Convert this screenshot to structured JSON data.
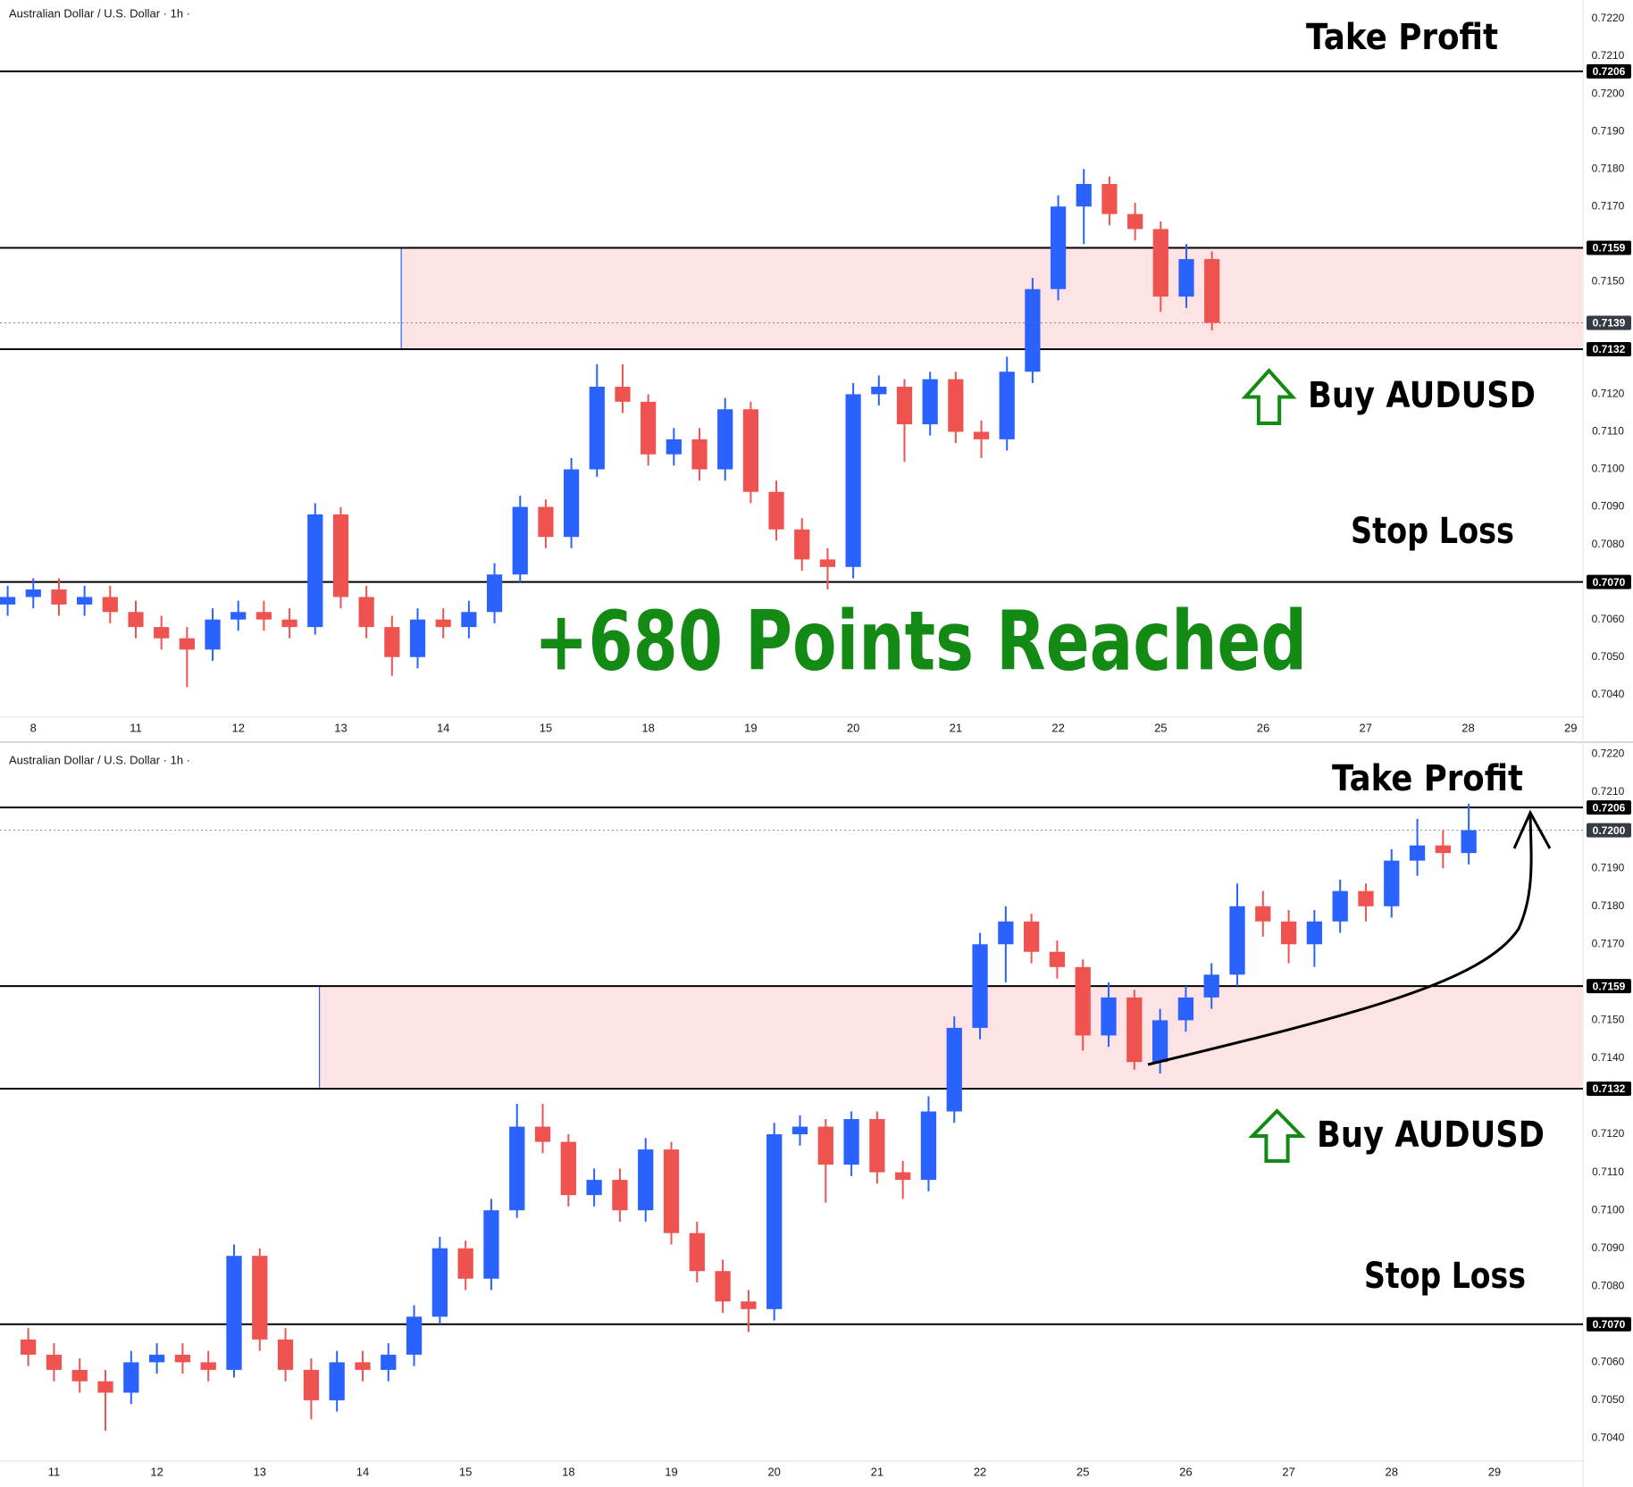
{
  "chart_data": [
    {
      "type": "candlestick",
      "title": "Australian Dollar / U.S. Dollar · 1h ·",
      "up_color": "#2962ff",
      "down_color": "#ef5350",
      "xlim": [
        -0.29,
        15.12
      ],
      "xticks": [
        {
          "value": 0,
          "label": "8"
        },
        {
          "value": 1,
          "label": "11"
        },
        {
          "value": 2,
          "label": "12"
        },
        {
          "value": 3,
          "label": "13"
        },
        {
          "value": 4,
          "label": "14"
        },
        {
          "value": 5,
          "label": "15"
        },
        {
          "value": 6,
          "label": "18"
        },
        {
          "value": 7,
          "label": "19"
        },
        {
          "value": 8,
          "label": "20"
        },
        {
          "value": 9,
          "label": "21"
        },
        {
          "value": 10,
          "label": "22"
        },
        {
          "value": 11,
          "label": "25"
        },
        {
          "value": 12,
          "label": "26"
        },
        {
          "value": 13,
          "label": "27"
        },
        {
          "value": 14,
          "label": "28"
        },
        {
          "value": 15,
          "label": "29"
        }
      ],
      "ylim": [
        0.7034,
        0.7225
      ],
      "yticks": [
        {
          "value": 0.704,
          "label": "0.7040"
        },
        {
          "value": 0.705,
          "label": "0.7050"
        },
        {
          "value": 0.706,
          "label": "0.7060"
        },
        {
          "value": 0.708,
          "label": "0.7080"
        },
        {
          "value": 0.709,
          "label": "0.7090"
        },
        {
          "value": 0.71,
          "label": "0.7100"
        },
        {
          "value": 0.711,
          "label": "0.7110"
        },
        {
          "value": 0.712,
          "label": "0.7120"
        },
        {
          "value": 0.715,
          "label": "0.7150"
        },
        {
          "value": 0.717,
          "label": "0.7170"
        },
        {
          "value": 0.718,
          "label": "0.7180"
        },
        {
          "value": 0.719,
          "label": "0.7190"
        },
        {
          "value": 0.72,
          "label": "0.7200"
        },
        {
          "value": 0.721,
          "label": "0.7210"
        },
        {
          "value": 0.722,
          "label": "0.7220"
        }
      ],
      "levels": [
        0.7206,
        0.7159,
        0.7132,
        {
          "value": 0.707,
          "label": "0.7070"
        }
      ],
      "last_price": 0.7139,
      "zone": {
        "x_start": 3.59,
        "low": 0.7132,
        "high": 0.7159,
        "color": "#fde3e3"
      },
      "take_profit": "Take Profit",
      "buy_label": "Buy AUDUSD",
      "stop_loss": "Stop Loss",
      "headline": "+680 Points Reached",
      "annotation_color": "#138a13",
      "x": [
        -0.25,
        0,
        0.25,
        0.5,
        0.75,
        1,
        1.25,
        1.5,
        1.75,
        2,
        2.25,
        2.5,
        2.75,
        3,
        3.25,
        3.5,
        3.75,
        4,
        4.25,
        4.5,
        4.75,
        5,
        5.25,
        5.5,
        5.75,
        6,
        6.25,
        6.5,
        6.75,
        7,
        7.25,
        7.5,
        7.75,
        8,
        8.25,
        8.5,
        8.75,
        9,
        9.25,
        9.5,
        9.75,
        10,
        10.25,
        10.5,
        10.75,
        11,
        11.25,
        11.5
      ],
      "open": [
        0.7064,
        0.7066,
        0.7068,
        0.7064,
        0.7066,
        0.7062,
        0.7058,
        0.7055,
        0.7052,
        0.706,
        0.7062,
        0.706,
        0.7058,
        0.7088,
        0.7066,
        0.7058,
        0.705,
        0.706,
        0.7058,
        0.7062,
        0.7072,
        0.709,
        0.7082,
        0.71,
        0.7122,
        0.7118,
        0.7104,
        0.7108,
        0.71,
        0.7116,
        0.7094,
        0.7084,
        0.7076,
        0.7074,
        0.712,
        0.7122,
        0.7112,
        0.7124,
        0.711,
        0.7108,
        0.7126,
        0.7148,
        0.717,
        0.7176,
        0.7168,
        0.7164,
        0.7146,
        0.7156
      ],
      "high": [
        0.7069,
        0.7071,
        0.7071,
        0.7069,
        0.7069,
        0.7065,
        0.7061,
        0.7058,
        0.7063,
        0.7065,
        0.7065,
        0.7063,
        0.7091,
        0.709,
        0.7069,
        0.7061,
        0.7063,
        0.7063,
        0.7065,
        0.7075,
        0.7093,
        0.7092,
        0.7103,
        0.7128,
        0.7128,
        0.712,
        0.7111,
        0.7111,
        0.7119,
        0.7118,
        0.7097,
        0.7087,
        0.7079,
        0.7123,
        0.7125,
        0.7124,
        0.7126,
        0.7126,
        0.7113,
        0.713,
        0.7151,
        0.7173,
        0.718,
        0.7178,
        0.7171,
        0.7166,
        0.716,
        0.7158
      ],
      "low": [
        0.7061,
        0.7063,
        0.7061,
        0.7061,
        0.7059,
        0.7055,
        0.7052,
        0.7042,
        0.7049,
        0.7057,
        0.7057,
        0.7055,
        0.7056,
        0.7063,
        0.7055,
        0.7045,
        0.7047,
        0.7055,
        0.7055,
        0.7059,
        0.707,
        0.7079,
        0.7079,
        0.7098,
        0.7115,
        0.7101,
        0.7101,
        0.7097,
        0.7097,
        0.7091,
        0.7081,
        0.7073,
        0.7068,
        0.7071,
        0.7117,
        0.7102,
        0.7109,
        0.7107,
        0.7103,
        0.7105,
        0.7123,
        0.7145,
        0.716,
        0.7165,
        0.7161,
        0.7142,
        0.7143,
        0.7137
      ],
      "close": [
        0.7066,
        0.7068,
        0.7064,
        0.7066,
        0.7062,
        0.7058,
        0.7055,
        0.7052,
        0.706,
        0.7062,
        0.706,
        0.7058,
        0.7088,
        0.7066,
        0.7058,
        0.705,
        0.706,
        0.7058,
        0.7062,
        0.7072,
        0.709,
        0.7082,
        0.71,
        0.7122,
        0.7118,
        0.7104,
        0.7108,
        0.71,
        0.7116,
        0.7094,
        0.7084,
        0.7076,
        0.7074,
        0.712,
        0.7122,
        0.7112,
        0.7124,
        0.711,
        0.7108,
        0.7126,
        0.7148,
        0.717,
        0.7176,
        0.7168,
        0.7164,
        0.7146,
        0.7156,
        0.7139
      ]
    },
    {
      "type": "candlestick",
      "title": "Australian Dollar / U.S. Dollar · 1h ·",
      "up_color": "#2962ff",
      "down_color": "#ef5350",
      "xlim": [
        -0.49,
        14.86
      ],
      "xticks": [
        {
          "value": 0,
          "label": "11"
        },
        {
          "value": 1,
          "label": "12"
        },
        {
          "value": 2,
          "label": "13"
        },
        {
          "value": 3,
          "label": "14"
        },
        {
          "value": 4,
          "label": "15"
        },
        {
          "value": 5,
          "label": "18"
        },
        {
          "value": 6,
          "label": "19"
        },
        {
          "value": 7,
          "label": "20"
        },
        {
          "value": 8,
          "label": "21"
        },
        {
          "value": 9,
          "label": "22"
        },
        {
          "value": 10,
          "label": "25"
        },
        {
          "value": 11,
          "label": "26"
        },
        {
          "value": 12,
          "label": "27"
        },
        {
          "value": 13,
          "label": "28"
        },
        {
          "value": 14,
          "label": "29"
        }
      ],
      "ylim": [
        0.7034,
        0.7222
      ],
      "yticks": [
        {
          "value": 0.704,
          "label": "0.7040"
        },
        {
          "value": 0.705,
          "label": "0.7050"
        },
        {
          "value": 0.706,
          "label": "0.7060"
        },
        {
          "value": 0.708,
          "label": "0.7080"
        },
        {
          "value": 0.709,
          "label": "0.7090"
        },
        {
          "value": 0.71,
          "label": "0.7100"
        },
        {
          "value": 0.711,
          "label": "0.7110"
        },
        {
          "value": 0.712,
          "label": "0.7120"
        },
        {
          "value": 0.714,
          "label": "0.7140"
        },
        {
          "value": 0.715,
          "label": "0.7150"
        },
        {
          "value": 0.717,
          "label": "0.7170"
        },
        {
          "value": 0.718,
          "label": "0.7180"
        },
        {
          "value": 0.719,
          "label": "0.7190"
        },
        {
          "value": 0.721,
          "label": "0.7210"
        },
        {
          "value": 0.722,
          "label": "0.7220"
        }
      ],
      "levels": [
        0.7206,
        0.7159,
        0.7132,
        {
          "value": 0.707,
          "label": "0.7070"
        }
      ],
      "last_price": {
        "value": 0.72,
        "label": "0.7200"
      },
      "zone": {
        "x_start": 2.58,
        "low": 0.7132,
        "high": 0.7159,
        "color": "#fde3e3"
      },
      "take_profit": "Take Profit",
      "buy_label": "Buy AUDUSD",
      "stop_loss": "Stop Loss",
      "annotation_color": "#138a13",
      "x": [
        -0.25,
        0,
        0.25,
        0.5,
        0.75,
        1,
        1.25,
        1.5,
        1.75,
        2,
        2.25,
        2.5,
        2.75,
        3,
        3.25,
        3.5,
        3.75,
        4,
        4.25,
        4.5,
        4.75,
        5,
        5.25,
        5.5,
        5.75,
        6,
        6.25,
        6.5,
        6.75,
        7,
        7.25,
        7.5,
        7.75,
        8,
        8.25,
        8.5,
        8.75,
        9,
        9.25,
        9.5,
        9.75,
        10,
        10.25,
        10.5,
        10.75,
        11,
        11.25,
        11.5,
        11.75,
        12,
        12.25,
        12.5,
        12.75,
        13,
        13.25,
        13.5,
        13.75
      ],
      "open": [
        0.7066,
        0.7062,
        0.7058,
        0.7055,
        0.7052,
        0.706,
        0.7062,
        0.706,
        0.7058,
        0.7088,
        0.7066,
        0.7058,
        0.705,
        0.706,
        0.7058,
        0.7062,
        0.7072,
        0.709,
        0.7082,
        0.71,
        0.7122,
        0.7118,
        0.7104,
        0.7108,
        0.71,
        0.7116,
        0.7094,
        0.7084,
        0.7076,
        0.7074,
        0.712,
        0.7122,
        0.7112,
        0.7124,
        0.711,
        0.7108,
        0.7126,
        0.7148,
        0.717,
        0.7176,
        0.7168,
        0.7164,
        0.7146,
        0.7156,
        0.7139,
        0.715,
        0.7156,
        0.7162,
        0.718,
        0.7176,
        0.717,
        0.7176,
        0.7184,
        0.718,
        0.7192,
        0.7196,
        0.7194
      ],
      "high": [
        0.7069,
        0.7065,
        0.7061,
        0.7058,
        0.7063,
        0.7065,
        0.7065,
        0.7063,
        0.7091,
        0.709,
        0.7069,
        0.7061,
        0.7063,
        0.7063,
        0.7065,
        0.7075,
        0.7093,
        0.7092,
        0.7103,
        0.7128,
        0.7128,
        0.712,
        0.7111,
        0.7111,
        0.7119,
        0.7118,
        0.7097,
        0.7087,
        0.7079,
        0.7123,
        0.7125,
        0.7124,
        0.7126,
        0.7126,
        0.7113,
        0.713,
        0.7151,
        0.7173,
        0.718,
        0.7178,
        0.7171,
        0.7166,
        0.716,
        0.7158,
        0.7153,
        0.7159,
        0.7165,
        0.7186,
        0.7184,
        0.7179,
        0.7179,
        0.7187,
        0.7186,
        0.7195,
        0.7203,
        0.72,
        0.7207
      ],
      "low": [
        0.7059,
        0.7055,
        0.7052,
        0.7042,
        0.7049,
        0.7057,
        0.7057,
        0.7055,
        0.7056,
        0.7063,
        0.7055,
        0.7045,
        0.7047,
        0.7055,
        0.7055,
        0.7059,
        0.707,
        0.7079,
        0.7079,
        0.7098,
        0.7115,
        0.7101,
        0.7101,
        0.7097,
        0.7097,
        0.7091,
        0.7081,
        0.7073,
        0.7068,
        0.7071,
        0.7117,
        0.7102,
        0.7109,
        0.7107,
        0.7103,
        0.7105,
        0.7123,
        0.7145,
        0.716,
        0.7165,
        0.7161,
        0.7142,
        0.7143,
        0.7137,
        0.7136,
        0.7147,
        0.7153,
        0.7159,
        0.7172,
        0.7165,
        0.7164,
        0.7173,
        0.7176,
        0.7177,
        0.7188,
        0.719,
        0.7191
      ],
      "close": [
        0.7062,
        0.7058,
        0.7055,
        0.7052,
        0.706,
        0.7062,
        0.706,
        0.7058,
        0.7088,
        0.7066,
        0.7058,
        0.705,
        0.706,
        0.7058,
        0.7062,
        0.7072,
        0.709,
        0.7082,
        0.71,
        0.7122,
        0.7118,
        0.7104,
        0.7108,
        0.71,
        0.7116,
        0.7094,
        0.7084,
        0.7076,
        0.7074,
        0.712,
        0.7122,
        0.7112,
        0.7124,
        0.711,
        0.7108,
        0.7126,
        0.7148,
        0.717,
        0.7176,
        0.7168,
        0.7164,
        0.7146,
        0.7156,
        0.7139,
        0.715,
        0.7156,
        0.7162,
        0.718,
        0.7176,
        0.717,
        0.7176,
        0.7184,
        0.718,
        0.7192,
        0.7196,
        0.7194,
        0.72
      ]
    }
  ]
}
